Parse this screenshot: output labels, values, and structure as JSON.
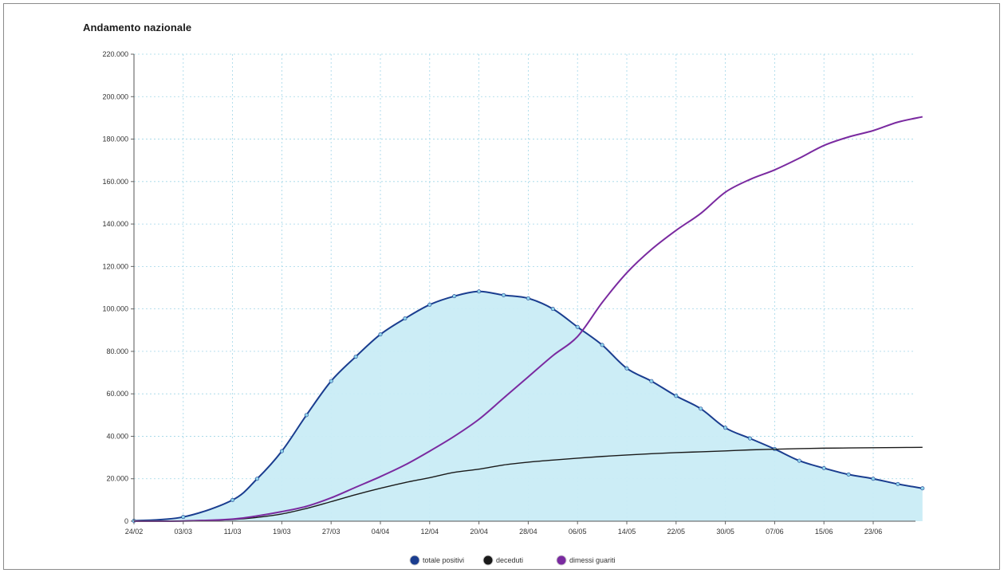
{
  "page": {
    "title": "Andamento nazionale"
  },
  "chart_data": {
    "type": "line",
    "title": "Andamento nazionale",
    "xlabel": "",
    "ylabel": "",
    "ylim": [
      0,
      220000
    ],
    "grid": true,
    "legend_position": "bottom-center",
    "x_ticks": [
      "24/02",
      "03/03",
      "11/03",
      "19/03",
      "27/03",
      "04/04",
      "12/04",
      "20/04",
      "28/04",
      "06/05",
      "14/05",
      "22/05",
      "30/05",
      "07/06",
      "15/06",
      "23/06"
    ],
    "y_ticks": [
      "0",
      "20.000",
      "40.000",
      "60.000",
      "80.000",
      "100.000",
      "120.000",
      "140.000",
      "160.000",
      "180.000",
      "200.000",
      "220.000"
    ],
    "x": [
      "24/02",
      "03/03",
      "11/03",
      "15/03",
      "19/03",
      "23/03",
      "27/03",
      "31/03",
      "04/04",
      "08/04",
      "12/04",
      "16/04",
      "20/04",
      "24/04",
      "28/04",
      "02/05",
      "06/05",
      "10/05",
      "14/05",
      "18/05",
      "22/05",
      "26/05",
      "30/05",
      "03/06",
      "07/06",
      "11/06",
      "15/06",
      "19/06",
      "23/06",
      "27/06",
      "01/07"
    ],
    "series": [
      {
        "name": "totale positivi",
        "color": "#1a3d8f",
        "fill": "#c9ecf6",
        "values": [
          200,
          2000,
          10000,
          20000,
          33000,
          50000,
          66000,
          77500,
          88000,
          95500,
          102000,
          106000,
          108200,
          106500,
          105000,
          100000,
          91500,
          83000,
          72000,
          66000,
          59000,
          53000,
          44000,
          39000,
          34000,
          28500,
          25000,
          22000,
          20000,
          17500,
          15500
        ]
      },
      {
        "name": "deceduti",
        "color": "#1a1a1a",
        "values": [
          0,
          100,
          800,
          1800,
          3400,
          6000,
          9200,
          12500,
          15500,
          18200,
          20500,
          23000,
          24500,
          26500,
          27800,
          28800,
          29700,
          30500,
          31200,
          31800,
          32300,
          32700,
          33100,
          33600,
          33900,
          34200,
          34400,
          34500,
          34600,
          34700,
          34800
        ]
      },
      {
        "name": "dimessi guariti",
        "color": "#7a2aa0",
        "values": [
          0,
          100,
          1000,
          2500,
          4500,
          7000,
          11000,
          16000,
          21000,
          26500,
          33000,
          40000,
          48000,
          58000,
          68000,
          78000,
          87000,
          103000,
          117000,
          128000,
          137000,
          145000,
          155000,
          161000,
          165500,
          171000,
          177000,
          181000,
          184000,
          188000,
          190500
        ]
      }
    ]
  }
}
